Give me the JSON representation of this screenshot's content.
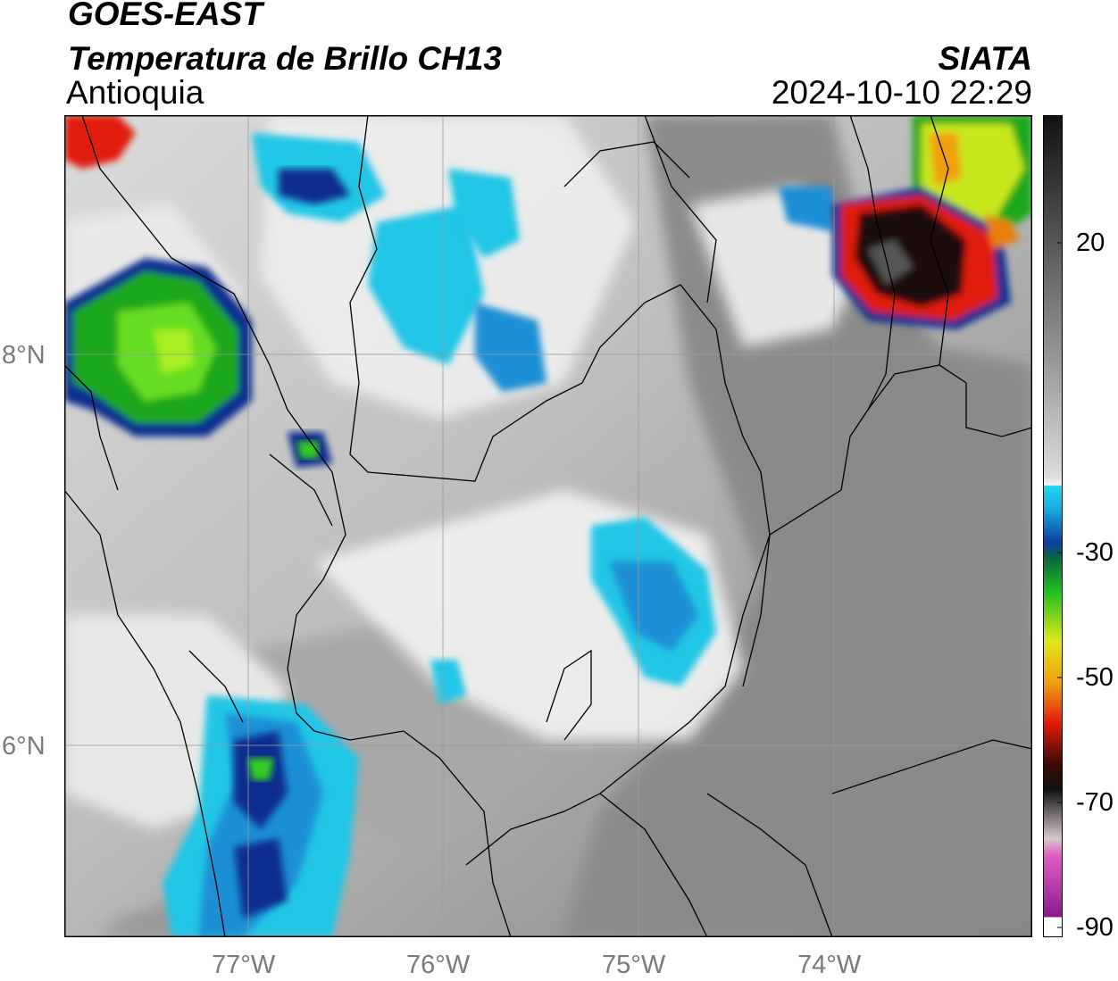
{
  "header": {
    "satellite": "GOES-EAST",
    "product": "Temperatura de Brillo CH13",
    "region": "Antioquia",
    "organization": "SIATA",
    "datetime": "2024-10-10 22:29"
  },
  "map": {
    "lon_ticks": [
      "77°W",
      "76°W",
      "75°W",
      "74°W"
    ],
    "lat_ticks": [
      "8°N",
      "6°N"
    ],
    "cloud_colors": {
      "land_gray": "#8f8f8f",
      "light": "#e6e6e6",
      "cyan": "#22c6e6",
      "blue": "#1a8fd6",
      "navy": "#0a2f8f",
      "green": "#33cc22",
      "yellow": "#d8e81a",
      "red": "#e01a0a",
      "black": "#1a0f0a"
    }
  },
  "colorbar": {
    "ticks": [
      "20",
      "-30",
      "-50",
      "-70",
      "-90"
    ]
  }
}
